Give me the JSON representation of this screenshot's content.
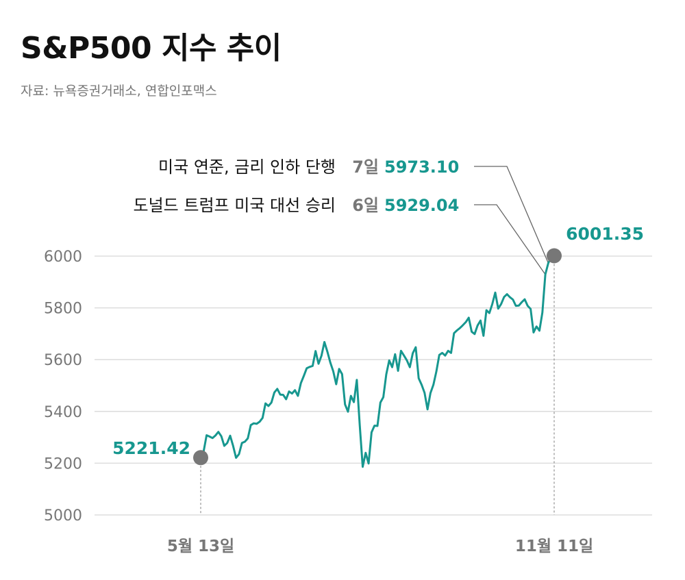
{
  "title": "S&P500 지수 추이",
  "source": "자료: 뉴욕증권거래소, 연합인포맥스",
  "colors": {
    "line": "#17978f",
    "accent": "#17978f",
    "marker": "#777777",
    "grid": "#d8d8d8",
    "text": "#111111",
    "muted": "#777777"
  },
  "chart_data": {
    "type": "line",
    "title": "S&P500 지수 추이",
    "xlabel": "",
    "ylabel": "",
    "ylim": [
      5000,
      6000
    ],
    "yticks": [
      5000,
      5200,
      5400,
      5600,
      5800,
      6000
    ],
    "xticks": [
      "5월 13일",
      "11월 11일"
    ],
    "grid": true,
    "series": [
      {
        "values": [
          5221.42,
          5246,
          5308,
          5303,
          5297,
          5307,
          5321,
          5304,
          5267,
          5278,
          5306,
          5267,
          5221,
          5235,
          5278,
          5283,
          5296,
          5347,
          5354,
          5352,
          5360,
          5375,
          5431,
          5421,
          5434,
          5473,
          5487,
          5465,
          5464,
          5447,
          5477,
          5469,
          5482,
          5460,
          5509,
          5537,
          5567,
          5572,
          5576,
          5633,
          5584,
          5615,
          5668,
          5631,
          5589,
          5555,
          5505,
          5564,
          5544,
          5427,
          5399,
          5460,
          5436,
          5522,
          5346,
          5186,
          5240,
          5199,
          5319,
          5345,
          5344,
          5434,
          5455,
          5543,
          5597,
          5571,
          5621,
          5557,
          5634,
          5616,
          5597,
          5571,
          5625,
          5648,
          5528,
          5503,
          5472,
          5408,
          5471,
          5503,
          5554,
          5618,
          5626,
          5616,
          5634,
          5626,
          5702,
          5713,
          5722,
          5733,
          5745,
          5762,
          5708,
          5699,
          5732,
          5751,
          5692,
          5791,
          5780,
          5815,
          5859,
          5797,
          5815,
          5842,
          5853,
          5841,
          5832,
          5808,
          5809,
          5822,
          5833,
          5808,
          5796,
          5705,
          5728,
          5712,
          5782,
          5929.04,
          5973.1,
          5995.54,
          6001.35
        ]
      }
    ],
    "start_label": "5221.42",
    "end_label": "6001.35"
  },
  "annotations": [
    {
      "text": "미국 연준, 금리 인하 단행",
      "date": "7일",
      "value": "5973.10"
    },
    {
      "text": "도널드 트럼프 미국 대선 승리",
      "date": "6일",
      "value": "5929.04"
    }
  ]
}
